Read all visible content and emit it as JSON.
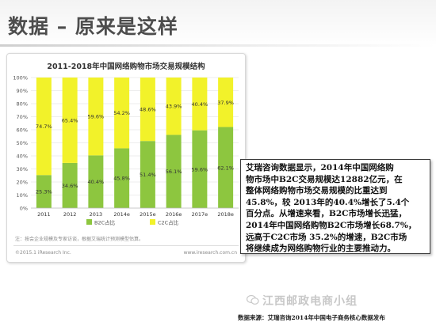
{
  "slide": {
    "title": "数据 – 原来是这样"
  },
  "chart_card": {
    "note": "注：按会企业规模及专家访谈，根据艾瑞统计预测模型估算。",
    "copyright": "©2015.1 iResearch Inc.",
    "website": "www.iresearch.com.cn"
  },
  "chart_data": {
    "type": "bar",
    "stacked": true,
    "title": "2011-2018年中国网络购物市场交易规模结构",
    "categories": [
      "2011",
      "2012",
      "2013",
      "2014e",
      "2015e",
      "2016e",
      "2017e",
      "2018e"
    ],
    "series": [
      {
        "name": "B2C占比",
        "color": "#8dc63f",
        "values": [
          25.3,
          34.6,
          40.4,
          45.8,
          51.4,
          56.1,
          59.6,
          62.1
        ],
        "labels": [
          "25.3%",
          "34.6%",
          "40.4%",
          "45.8%",
          "51.4%",
          "56.1%",
          "59.6%",
          "62.1%"
        ]
      },
      {
        "name": "C2C占比",
        "color": "#f2f22a",
        "values": [
          74.7,
          65.4,
          59.6,
          54.2,
          48.6,
          43.9,
          40.4,
          37.9
        ],
        "labels": [
          "74.7%",
          "65.4%",
          "59.6%",
          "54.2%",
          "48.6%",
          "43.9%",
          "40.4%",
          "37.9%"
        ]
      }
    ],
    "yticks": [
      "0%",
      "10%",
      "20%",
      "30%",
      "40%",
      "50%",
      "60%",
      "70%",
      "80%",
      "90%",
      "100%"
    ],
    "ylim": [
      0,
      100
    ],
    "grid": true,
    "legend_position": "bottom"
  },
  "text_box": {
    "lines": [
      "艾瑞咨询数据显示，2014年中国网络购",
      "物市场中B2C交易规模达12882亿元，在",
      "整体网络购物市场交易规模的比重达到",
      "45.8%，较 2013年的40.4%增长了5.4个",
      "百分点。从增速来看，B2C市场增长迅猛，",
      "2014年中国网络购物B2C市场增长68.7%，",
      "远高于C2C市场 35.2%的增速，B2C市场",
      "将继续成为网络购物行业的主要推动力。"
    ]
  },
  "watermark": {
    "text": "江西邮政电商小组"
  },
  "source": {
    "text": "数据来源：艾瑞咨询2014年中国电子商务核心数据发布"
  }
}
